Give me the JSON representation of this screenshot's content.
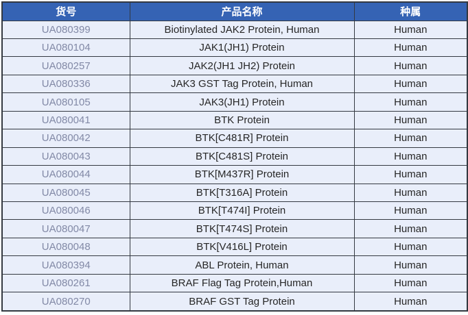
{
  "table": {
    "headers": [
      "货号",
      "产品名称",
      "种属"
    ],
    "rows": [
      {
        "catalog": "UA080399",
        "product": "Biotinylated JAK2 Protein, Human",
        "species": "Human"
      },
      {
        "catalog": "UA080104",
        "product": "JAK1(JH1) Protein",
        "species": "Human"
      },
      {
        "catalog": "UA080257",
        "product": "JAK2(JH1 JH2) Protein",
        "species": "Human"
      },
      {
        "catalog": "UA080336",
        "product": "JAK3 GST Tag Protein, Human",
        "species": "Human"
      },
      {
        "catalog": "UA080105",
        "product": "JAK3(JH1) Protein",
        "species": "Human"
      },
      {
        "catalog": "UA080041",
        "product": "BTK Protein",
        "species": "Human"
      },
      {
        "catalog": "UA080042",
        "product": "BTK[C481R] Protein",
        "species": "Human"
      },
      {
        "catalog": "UA080043",
        "product": "BTK[C481S] Protein",
        "species": "Human"
      },
      {
        "catalog": "UA080044",
        "product": "BTK[M437R] Protein",
        "species": "Human"
      },
      {
        "catalog": "UA080045",
        "product": "BTK[T316A] Protein",
        "species": "Human"
      },
      {
        "catalog": "UA080046",
        "product": "BTK[T474I] Protein",
        "species": "Human"
      },
      {
        "catalog": "UA080047",
        "product": "BTK[T474S] Protein",
        "species": "Human"
      },
      {
        "catalog": "UA080048",
        "product": "BTK[V416L] Protein",
        "species": "Human"
      },
      {
        "catalog": "UA080394",
        "product": "ABL Protein, Human",
        "species": "Human"
      },
      {
        "catalog": "UA080261",
        "product": "BRAF Flag Tag Protein,Human",
        "species": "Human"
      },
      {
        "catalog": "UA080270",
        "product": "BRAF GST Tag Protein",
        "species": "Human"
      }
    ]
  },
  "colors": {
    "header_bg": "#3563B4",
    "header_text": "#FFFFFF",
    "row_bg": "#E9EEFA",
    "border": "#333840",
    "catalog_text": "#8289A6",
    "body_text": "#262626",
    "page_bg": "#FFFFFF"
  }
}
